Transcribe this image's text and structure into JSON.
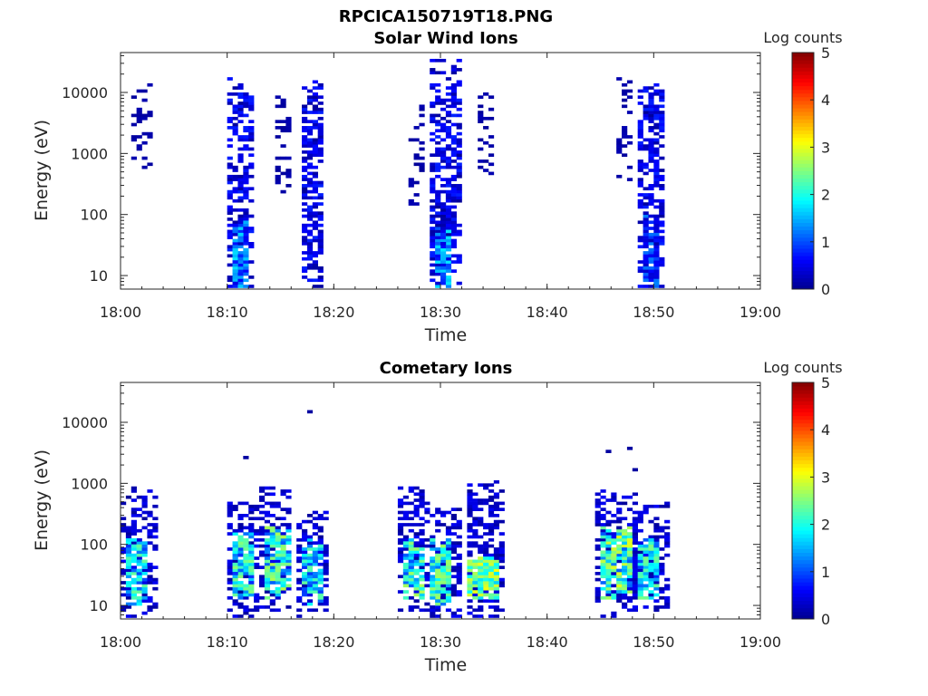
{
  "figure_title": "RPCICA150719T18.PNG",
  "colormap": [
    "#00008f",
    "#0000ff",
    "#0080ff",
    "#00ffff",
    "#80ff80",
    "#ffff00",
    "#ff8000",
    "#ff0000",
    "#800000"
  ],
  "chart_data": [
    {
      "type": "heatmap",
      "title": "Solar Wind Ions",
      "xlabel": "Time",
      "ylabel": "Energy (eV)",
      "x_ticks": [
        "18:00",
        "18:10",
        "18:20",
        "18:30",
        "18:40",
        "18:50",
        "19:00"
      ],
      "x_range_min": [
        0,
        60
      ],
      "y_ticks": [
        "10",
        "100",
        "1000",
        "10000"
      ],
      "y_tick_values": [
        10,
        100,
        1000,
        10000
      ],
      "y_scale": "log",
      "y_range": [
        6,
        45000
      ],
      "colorbar": {
        "label": "Log counts",
        "range": [
          0,
          5
        ],
        "ticks": [
          "0",
          "1",
          "2",
          "3",
          "4",
          "5"
        ]
      },
      "clusters": [
        {
          "t": [
            0.8,
            3.0
          ],
          "e": [
            400,
            15000
          ],
          "d": 0.3,
          "c": [
            0.05,
            0.2
          ]
        },
        {
          "t": [
            10.0,
            12.5
          ],
          "e": [
            6,
            18000
          ],
          "d": 0.55,
          "c": [
            0.05,
            0.8
          ]
        },
        {
          "t": [
            10.6,
            12.2
          ],
          "e": [
            6,
            80
          ],
          "d": 0.85,
          "c": [
            0.3,
            1.8
          ]
        },
        {
          "t": [
            14.3,
            16.2
          ],
          "e": [
            200,
            11000
          ],
          "d": 0.3,
          "c": [
            0.05,
            0.2
          ]
        },
        {
          "t": [
            17.2,
            19.2
          ],
          "e": [
            6,
            15000
          ],
          "d": 0.65,
          "c": [
            0.05,
            0.8
          ]
        },
        {
          "t": [
            27.2,
            28.7
          ],
          "e": [
            100,
            12000
          ],
          "d": 0.3,
          "c": [
            0.05,
            0.2
          ]
        },
        {
          "t": [
            29.2,
            31.9
          ],
          "e": [
            6,
            35000
          ],
          "d": 0.6,
          "c": [
            0.05,
            0.8
          ]
        },
        {
          "t": [
            29.6,
            31.2
          ],
          "e": [
            6,
            60
          ],
          "d": 0.85,
          "c": [
            0.3,
            1.8
          ]
        },
        {
          "t": [
            33.5,
            35.1
          ],
          "e": [
            400,
            11000
          ],
          "d": 0.35,
          "c": [
            0.05,
            0.2
          ]
        },
        {
          "t": [
            46.3,
            48.2
          ],
          "e": [
            300,
            18000
          ],
          "d": 0.3,
          "c": [
            0.05,
            0.2
          ]
        },
        {
          "t": [
            48.6,
            51.2
          ],
          "e": [
            6,
            14000
          ],
          "d": 0.62,
          "c": [
            0.05,
            0.8
          ]
        },
        {
          "t": [
            49.0,
            50.6
          ],
          "e": [
            6,
            100
          ],
          "d": 0.8,
          "c": [
            0.2,
            1.3
          ]
        }
      ]
    },
    {
      "type": "heatmap",
      "title": "Cometary Ions",
      "xlabel": "Time",
      "ylabel": "Energy (eV)",
      "x_ticks": [
        "18:00",
        "18:10",
        "18:20",
        "18:30",
        "18:40",
        "18:50",
        "19:00"
      ],
      "x_range_min": [
        0,
        60
      ],
      "y_ticks": [
        "10",
        "100",
        "1000",
        "10000"
      ],
      "y_tick_values": [
        10,
        100,
        1000,
        10000
      ],
      "y_scale": "log",
      "y_range": [
        6,
        45000
      ],
      "colorbar": {
        "label": "Log counts",
        "range": [
          0,
          5
        ],
        "ticks": [
          "0",
          "1",
          "2",
          "3",
          "4",
          "5"
        ]
      },
      "clusters": [
        {
          "t": [
            0.2,
            3.3
          ],
          "e": [
            6,
            900
          ],
          "d": 0.45,
          "c": [
            0.05,
            0.6
          ]
        },
        {
          "t": [
            0.4,
            2.4
          ],
          "e": [
            10,
            120
          ],
          "d": 0.85,
          "c": [
            0.8,
            2.4
          ]
        },
        {
          "t": [
            9.8,
            13.2
          ],
          "e": [
            6,
            500
          ],
          "d": 0.5,
          "c": [
            0.05,
            0.6
          ]
        },
        {
          "t": [
            10.3,
            12.3
          ],
          "e": [
            12,
            150
          ],
          "d": 0.85,
          "c": [
            0.8,
            2.6
          ]
        },
        {
          "t": [
            13.1,
            16.2
          ],
          "e": [
            8,
            900
          ],
          "d": 0.5,
          "c": [
            0.05,
            0.6
          ]
        },
        {
          "t": [
            13.4,
            15.8
          ],
          "e": [
            12,
            200
          ],
          "d": 0.85,
          "c": [
            1.0,
            2.8
          ]
        },
        {
          "t": [
            16.5,
            19.5
          ],
          "e": [
            6,
            400
          ],
          "d": 0.5,
          "c": [
            0.05,
            0.6
          ]
        },
        {
          "t": [
            16.8,
            18.8
          ],
          "e": [
            10,
            120
          ],
          "d": 0.8,
          "c": [
            0.8,
            2.4
          ]
        },
        {
          "t": [
            25.9,
            28.9
          ],
          "e": [
            8,
            900
          ],
          "d": 0.45,
          "c": [
            0.05,
            0.6
          ]
        },
        {
          "t": [
            26.5,
            28.7
          ],
          "e": [
            12,
            120
          ],
          "d": 0.85,
          "c": [
            1.0,
            2.8
          ]
        },
        {
          "t": [
            28.9,
            31.9
          ],
          "e": [
            6,
            400
          ],
          "d": 0.5,
          "c": [
            0.05,
            0.6
          ]
        },
        {
          "t": [
            29.0,
            31.2
          ],
          "e": [
            10,
            120
          ],
          "d": 0.85,
          "c": [
            1.0,
            2.7
          ]
        },
        {
          "t": [
            32.3,
            35.9
          ],
          "e": [
            6,
            1100
          ],
          "d": 0.5,
          "c": [
            0.05,
            0.6
          ]
        },
        {
          "t": [
            32.6,
            35.6
          ],
          "e": [
            12,
            60
          ],
          "d": 0.92,
          "c": [
            1.6,
            3.1
          ]
        },
        {
          "t": [
            44.6,
            48.6
          ],
          "e": [
            6,
            800
          ],
          "d": 0.5,
          "c": [
            0.05,
            0.6
          ]
        },
        {
          "t": [
            45.0,
            48.0
          ],
          "e": [
            12,
            200
          ],
          "d": 0.85,
          "c": [
            1.0,
            3.0
          ]
        },
        {
          "t": [
            48.2,
            51.5
          ],
          "e": [
            8,
            500
          ],
          "d": 0.5,
          "c": [
            0.05,
            0.6
          ]
        },
        {
          "t": [
            48.7,
            50.6
          ],
          "e": [
            12,
            120
          ],
          "d": 0.85,
          "c": [
            0.8,
            2.5
          ]
        }
      ],
      "points": [
        {
          "t": 17.7,
          "e": 14000,
          "c": 0.1
        },
        {
          "t": 11.3,
          "e": 2600,
          "c": 0.1
        },
        {
          "t": 45.6,
          "e": 3000,
          "c": 0.1
        },
        {
          "t": 47.6,
          "e": 3600,
          "c": 0.1
        },
        {
          "t": 47.8,
          "e": 1600,
          "c": 0.1
        }
      ]
    }
  ]
}
